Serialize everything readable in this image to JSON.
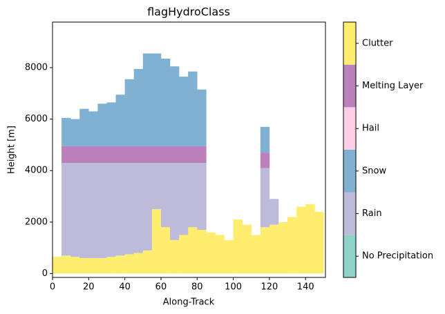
{
  "chart_data": {
    "type": "stacked_bar",
    "title": "flagHydroClass",
    "xlabel": "Along-Track",
    "ylabel": "Height [m]",
    "x": [
      0,
      5,
      10,
      15,
      20,
      25,
      30,
      35,
      40,
      45,
      50,
      55,
      60,
      65,
      70,
      75,
      80,
      85,
      90,
      95,
      100,
      105,
      110,
      115,
      120,
      125,
      130,
      135,
      140,
      145
    ],
    "bar_width": 5,
    "series": [
      {
        "name": "Clutter",
        "color": "#ffed6f",
        "values": [
          650,
          700,
          650,
          600,
          600,
          600,
          650,
          700,
          750,
          800,
          900,
          2500,
          1800,
          1300,
          1500,
          1800,
          1700,
          1600,
          1500,
          1300,
          2100,
          1900,
          1500,
          1800,
          1900,
          2000,
          2200,
          2600,
          2700,
          2400
        ]
      },
      {
        "name": "Rain",
        "color": "#bebada",
        "values": [
          0,
          3600,
          3650,
          3700,
          3700,
          3700,
          3650,
          3600,
          3550,
          3500,
          3400,
          1800,
          2500,
          3000,
          2800,
          2500,
          2600,
          0,
          0,
          0,
          0,
          0,
          0,
          2300,
          1000,
          0,
          0,
          0,
          0,
          0
        ]
      },
      {
        "name": "Melting Layer",
        "color": "#bc80bd",
        "values": [
          0,
          650,
          650,
          650,
          650,
          650,
          650,
          650,
          650,
          650,
          650,
          650,
          650,
          650,
          650,
          650,
          650,
          0,
          0,
          0,
          0,
          0,
          0,
          600,
          0,
          0,
          0,
          0,
          0,
          0
        ]
      },
      {
        "name": "Snow",
        "color": "#80b1d3",
        "values": [
          0,
          1100,
          1050,
          1450,
          1350,
          1650,
          1700,
          2000,
          2600,
          3000,
          3600,
          3600,
          3400,
          3100,
          2700,
          2900,
          2200,
          0,
          0,
          0,
          0,
          0,
          0,
          1000,
          0,
          0,
          0,
          0,
          0,
          0
        ]
      }
    ],
    "xlim": [
      0,
      151
    ],
    "ylim": [
      -150,
      9770
    ],
    "xticks": [
      0,
      20,
      40,
      60,
      80,
      100,
      120,
      140
    ],
    "yticks": [
      0,
      2000,
      4000,
      6000,
      8000
    ],
    "colorbar": {
      "labels": [
        "No Precipitation",
        "Rain",
        "Snow",
        "Hail",
        "Melting Layer",
        "Clutter"
      ],
      "colors": [
        "#8dd3c7",
        "#bebada",
        "#80b1d3",
        "#fccde5",
        "#bc80bd",
        "#ffed6f"
      ]
    }
  }
}
